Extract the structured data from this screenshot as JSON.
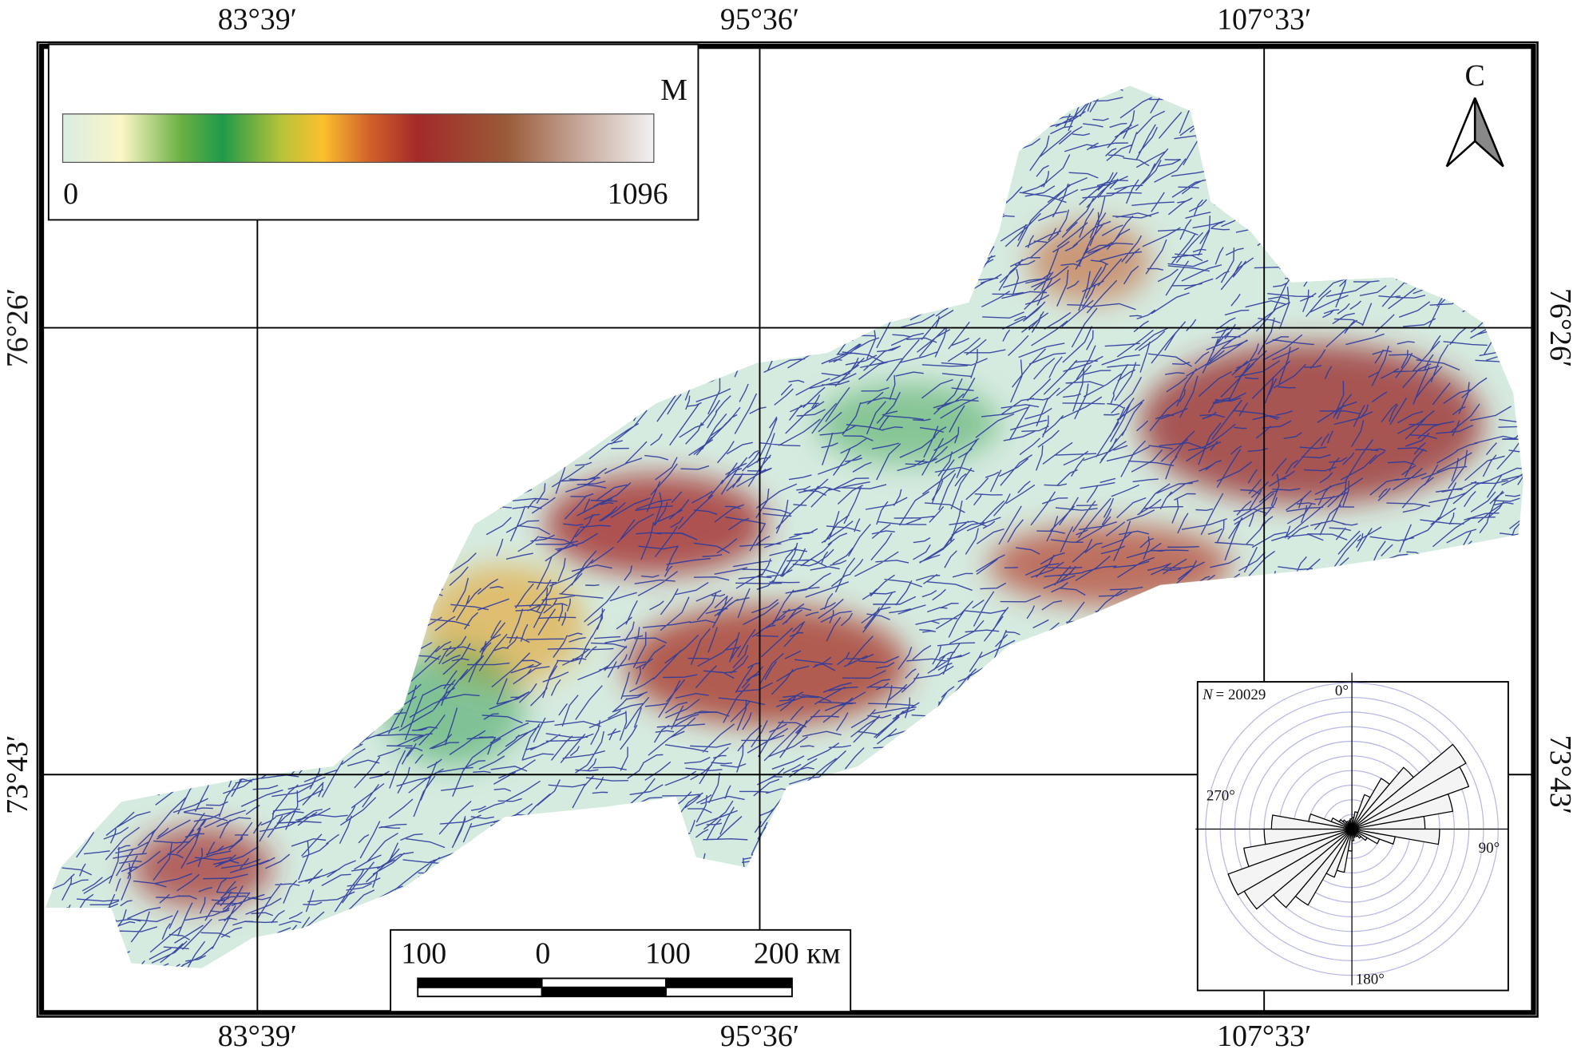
{
  "map": {
    "coordinates": {
      "top": [
        "83°39′",
        "95°36′",
        "107°33′"
      ],
      "bottom": [
        "83°39′",
        "95°36′",
        "107°33′"
      ],
      "left": [
        "76°26′",
        "73°43′"
      ],
      "right": [
        "76°26′",
        "73°43′"
      ]
    },
    "legend": {
      "unit": "М",
      "min": "0",
      "max": "1096"
    },
    "north_arrow": "С",
    "scale_bar": {
      "labels": [
        "100",
        "0",
        "100",
        "200 км"
      ]
    },
    "rose": {
      "n_symbol": "N",
      "n_value": "= 20029",
      "directions": [
        "0°",
        "90°",
        "180°",
        "270°"
      ],
      "rlim": [
        0,
        10
      ],
      "rticks": [
        1,
        2,
        3,
        4,
        5,
        6,
        7,
        8,
        9,
        10
      ],
      "bin_width": 10,
      "petals": [
        0.8,
        1.2,
        2.5,
        4,
        5.5,
        9,
        8.5,
        7,
        5,
        6,
        3,
        2,
        1.2,
        0.8,
        0.6,
        0.5,
        0.6,
        0.8,
        1.5,
        3,
        3.5,
        6,
        7,
        8.5,
        9,
        7.5,
        6,
        5.5,
        3,
        1.5,
        1,
        0.8,
        0.6,
        0.5,
        0.6,
        0.7
      ]
    }
  }
}
